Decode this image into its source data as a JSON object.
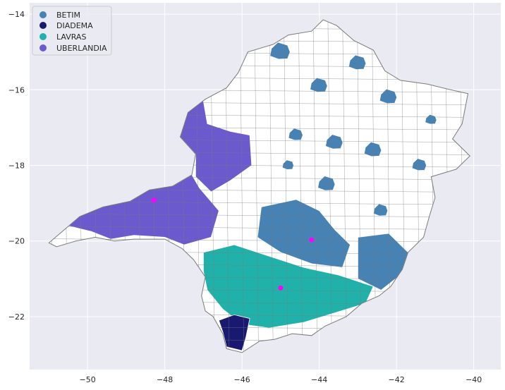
{
  "figure": {
    "type": "choropleth-map",
    "background": "#eaeaf2",
    "grid": true,
    "grid_color": "#ffffff",
    "outline_color": "#7a7a7a",
    "base_fill": "#ffffff"
  },
  "axes": {
    "xlim": [
      -51.5,
      -39.3
    ],
    "ylim": [
      -23.4,
      -13.7
    ],
    "x_ticks": [
      {
        "value": -50,
        "label": "−50"
      },
      {
        "value": -48,
        "label": "−48"
      },
      {
        "value": -46,
        "label": "−46"
      },
      {
        "value": -44,
        "label": "−44"
      },
      {
        "value": -42,
        "label": "−42"
      },
      {
        "value": -40,
        "label": "−40"
      }
    ],
    "y_ticks": [
      {
        "value": -14,
        "label": "−14"
      },
      {
        "value": -16,
        "label": "−16"
      },
      {
        "value": -18,
        "label": "−18"
      },
      {
        "value": -20,
        "label": "−20"
      },
      {
        "value": -22,
        "label": "−22"
      }
    ]
  },
  "legend": {
    "placement": "top-left",
    "entries": [
      {
        "label": "BETIM",
        "color": "#4682b4"
      },
      {
        "label": "DIADEMA",
        "color": "#191970"
      },
      {
        "label": "LAVRAS",
        "color": "#20b2aa"
      },
      {
        "label": "UBERLANDIA",
        "color": "#6a5acd"
      }
    ]
  },
  "markers": {
    "color": "#ff00ff",
    "points": [
      {
        "lon": -48.28,
        "lat": -18.92
      },
      {
        "lon": -44.2,
        "lat": -19.97
      },
      {
        "lon": -45.0,
        "lat": -21.24
      }
    ]
  }
}
